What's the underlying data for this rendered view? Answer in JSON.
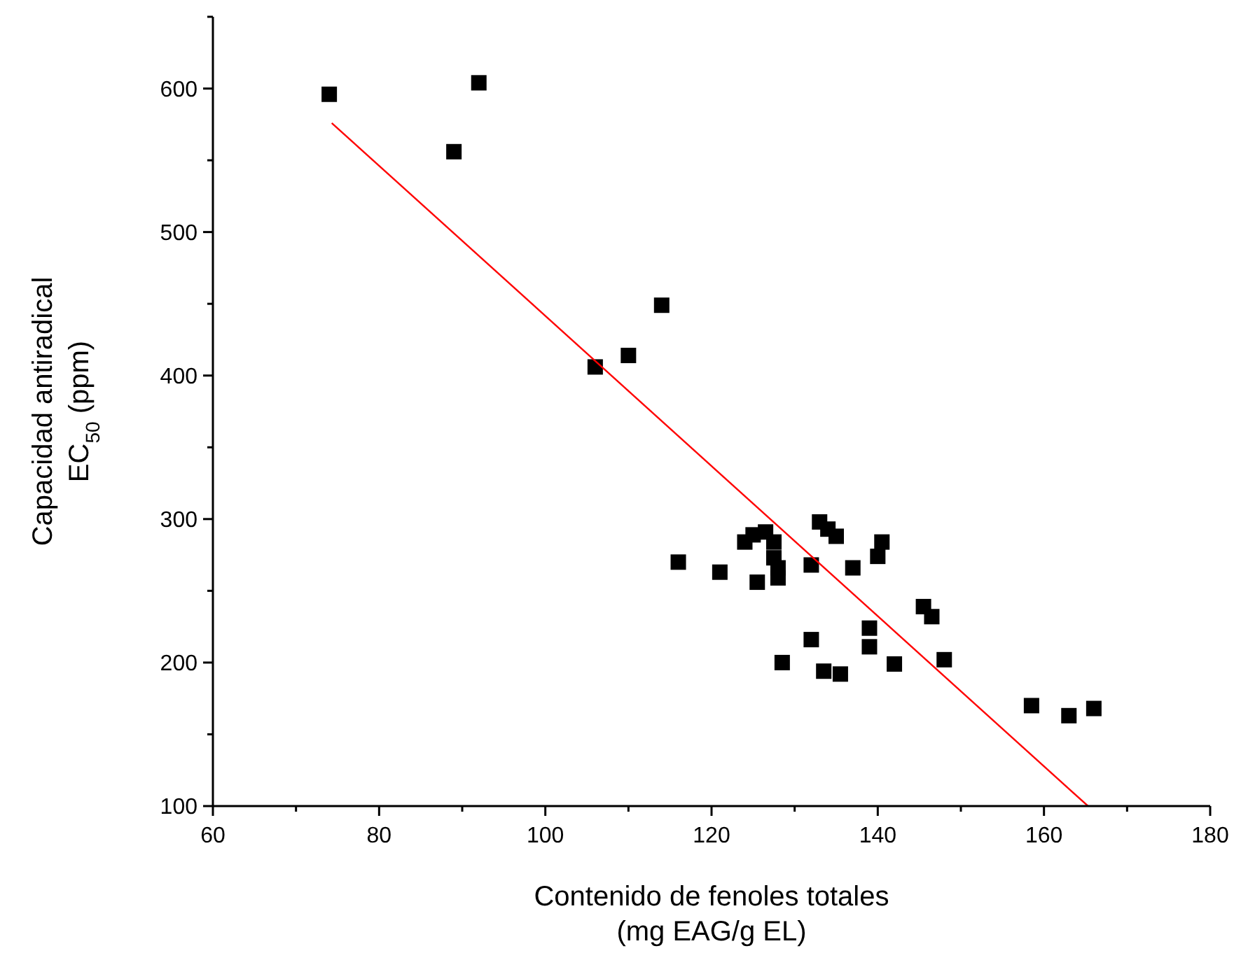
{
  "chart_data": {
    "type": "scatter",
    "xlabel": "Contenido de fenoles totales\n(mg EAG/g EL)",
    "ylabel": "Capacidad antiradical\nEC$_{50}$ (ppm)",
    "marker": "square",
    "grid": false,
    "xlim": [
      60,
      180
    ],
    "ylim": [
      100,
      650
    ],
    "xticks": [
      60,
      {
        "value": 70,
        "label": null
      },
      80,
      {
        "value": 90,
        "label": null
      },
      100,
      {
        "value": 110,
        "label": null
      },
      120,
      {
        "value": 130,
        "label": null
      },
      140,
      {
        "value": 150,
        "label": null
      },
      160,
      {
        "value": 170,
        "label": null
      },
      180
    ],
    "yticks": [
      100,
      {
        "value": 150,
        "label": null
      },
      200,
      {
        "value": 250,
        "label": null
      },
      300,
      {
        "value": 350,
        "label": null
      },
      400,
      {
        "value": 450,
        "label": null
      },
      500,
      {
        "value": 550,
        "label": null
      },
      600,
      {
        "value": 650,
        "label": null
      }
    ],
    "series": [
      {
        "color": "#000000",
        "x": [
          74,
          89,
          92,
          106,
          110,
          114,
          116,
          121,
          124,
          125,
          125.5,
          126.5,
          127.5,
          127.5,
          128,
          128,
          128.5,
          132,
          132,
          133,
          133.5,
          134,
          135,
          135.5,
          137,
          139,
          139,
          140,
          140.5,
          142,
          145.5,
          146.5,
          148,
          158.5,
          163,
          166
        ],
        "values": [
          596,
          556,
          604,
          406,
          414,
          449,
          270,
          263,
          284,
          289,
          256,
          291,
          284,
          273,
          259,
          266,
          200,
          268,
          216,
          298,
          194,
          293,
          288,
          192,
          266,
          224,
          211,
          274,
          284,
          199,
          239,
          232,
          202,
          170,
          163,
          168
        ]
      },
      {
        "type": "line",
        "marker": "none",
        "color": "#ff0000",
        "x": [
          74.3,
          165.3
        ],
        "values": [
          576,
          100
        ]
      }
    ]
  }
}
